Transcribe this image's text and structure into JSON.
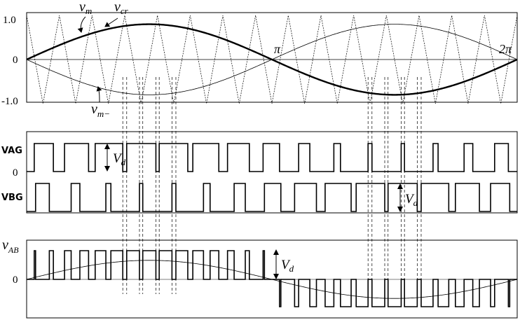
{
  "diagram": {
    "panel1": {
      "y_top_label": "1.0",
      "y_zero_label": "0",
      "y_bottom_label": "-1.0",
      "pi_label": "π",
      "two_pi_label": "2π",
      "vm_label": "v",
      "vm_sub": "m",
      "vcr_label": "v",
      "vcr_sub": "cr",
      "vmminus_label": "v",
      "vmminus_sub": "m−",
      "modulation_amplitude": 0.8,
      "carrier_periods": 15
    },
    "panel2": {
      "vag_label": "VAG",
      "vbg_label": "VBG",
      "zero_label": "0",
      "vd_label": "V",
      "vd_sub": "d"
    },
    "panel3": {
      "vab_label": "v",
      "vab_sub": "AB",
      "zero_label": "0",
      "vd_label": "V",
      "vd_sub": "d"
    }
  }
}
